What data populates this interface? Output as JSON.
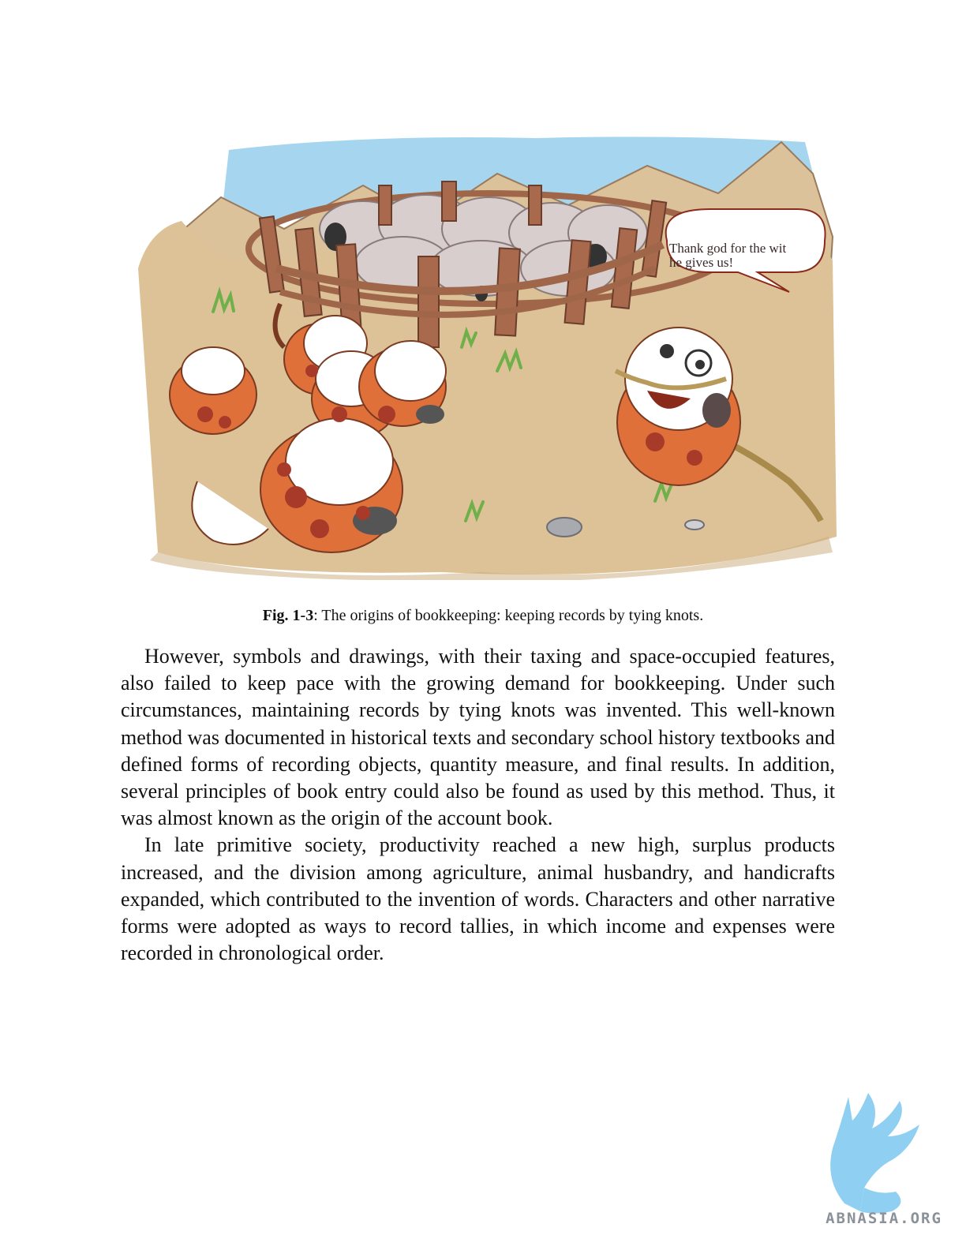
{
  "figure": {
    "speech_bubble": [
      "Thank god for the wit",
      "he gives us!"
    ],
    "caption_label": "Fig. 1-3",
    "caption_text": ": The origins of bookkeeping: keeping records by tying knots."
  },
  "paragraphs": [
    "However, symbols and drawings, with their taxing and space-occupied features, also failed to keep pace with the growing demand for bookkeeping. Under such circumstances, maintaining records by tying knots was invented. This well-known method was documented in historical texts and secondary school history textbooks and defined forms of recording objects, quantity measure, and final results. In addition, several principles of book entry could also be found as used by this method. Thus, it was almost known as the origin of the account book.",
    "In late primitive society, productivity reached a new high, surplus products increased, and the division among agriculture, animal husbandry, and handicrafts expanded, which contributed to the invention of words. Characters and other narrative forms were adopted as ways to record tallies, in which income and expenses were recorded in chronological order."
  ],
  "watermark": {
    "text": "ABNASIA.ORG",
    "icon": "griffin-logo-icon",
    "color": "#8fd0f2"
  },
  "colors": {
    "sky": "#9ed2ee",
    "ground": "#dcc296",
    "fur": "#e0703a",
    "spot": "#a83a2a",
    "fence": "#a0664a",
    "sheep": "#d6cccc"
  }
}
